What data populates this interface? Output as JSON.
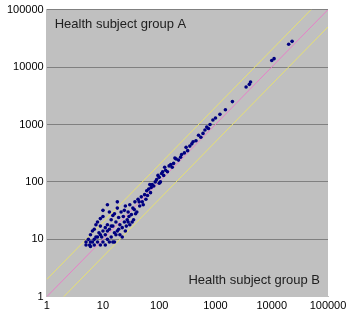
{
  "chart_data": {
    "type": "scatter",
    "y_label": "Health subject group A",
    "x_label": "Health subject group B",
    "log": true,
    "grid": "y",
    "color": "#000080",
    "marker": "circle",
    "xlim": [
      1,
      100000
    ],
    "ylim": [
      1,
      100000
    ],
    "xticks": [
      1,
      10,
      100,
      1000,
      10000,
      100000
    ],
    "yticks": [
      1,
      10,
      100,
      1000,
      10000,
      100000
    ],
    "x": [
      5,
      5.5,
      6,
      6,
      6.5,
      7,
      7,
      7.5,
      8,
      8,
      8.5,
      9,
      9,
      9.5,
      10,
      10,
      10,
      11,
      11,
      12,
      12,
      13,
      13,
      14,
      14,
      15,
      15,
      16,
      16,
      17,
      18,
      18,
      19,
      20,
      20,
      21,
      22,
      23,
      24,
      25,
      25,
      27,
      28,
      30,
      30,
      32,
      34,
      35,
      37,
      40,
      42,
      45,
      48,
      50,
      55,
      58,
      60,
      65,
      70,
      75,
      80,
      85,
      90,
      100,
      100,
      110,
      120,
      130,
      140,
      150,
      160,
      180,
      200,
      220,
      250,
      280,
      300,
      350,
      400,
      450,
      500,
      600,
      700,
      800,
      900,
      1000,
      1200,
      1500,
      2000,
      3500,
      4000,
      4200,
      10000,
      11000,
      20000,
      23000,
      6,
      7,
      8,
      9,
      11,
      12,
      13,
      14,
      16,
      17,
      19,
      22,
      26,
      29,
      33,
      38,
      6.5,
      7.5,
      9,
      10,
      12,
      15,
      18,
      5,
      5.8,
      24,
      28,
      36,
      44,
      52,
      62,
      68,
      72,
      95,
      105,
      115,
      125,
      170,
      190,
      240,
      320,
      380,
      550,
      650,
      750
    ],
    "values": [
      8,
      10,
      7.5,
      12,
      9,
      8,
      15,
      11,
      9,
      20,
      13,
      8,
      17,
      11,
      9,
      14,
      25,
      12,
      8,
      18,
      10,
      15,
      30,
      11,
      22,
      9,
      17,
      13,
      28,
      20,
      14,
      35,
      24,
      12,
      18,
      30,
      16,
      25,
      20,
      14,
      38,
      22,
      30,
      18,
      40,
      27,
      35,
      22,
      45,
      30,
      50,
      38,
      55,
      45,
      60,
      50,
      70,
      75,
      65,
      90,
      85,
      100,
      110,
      120,
      95,
      140,
      130,
      160,
      150,
      190,
      200,
      210,
      250,
      240,
      300,
      320,
      400,
      420,
      500,
      520,
      650,
      700,
      900,
      1000,
      1200,
      1300,
      1500,
      1800,
      2500,
      4500,
      5000,
      5500,
      13000,
      14000,
      25000,
      28000,
      9,
      10,
      11,
      12,
      16,
      14,
      9,
      17,
      9,
      12,
      15,
      11,
      17,
      25,
      20,
      28,
      14,
      18,
      23,
      32,
      40,
      26,
      45,
      9,
      8,
      32,
      20,
      33,
      45,
      40,
      58,
      90,
      80,
      130,
      100,
      150,
      180,
      180,
      260,
      270,
      350,
      460,
      600,
      800,
      850
    ],
    "reference_lines": [
      {
        "color": "#e77fc8",
        "x": [
          1,
          100000
        ],
        "values": [
          1,
          100000
        ]
      },
      {
        "color": "#e6e070",
        "x": [
          1,
          50000
        ],
        "values": [
          2,
          100000
        ]
      },
      {
        "color": "#e6e070",
        "x": [
          2,
          100000
        ],
        "values": [
          1,
          50000
        ]
      }
    ]
  }
}
